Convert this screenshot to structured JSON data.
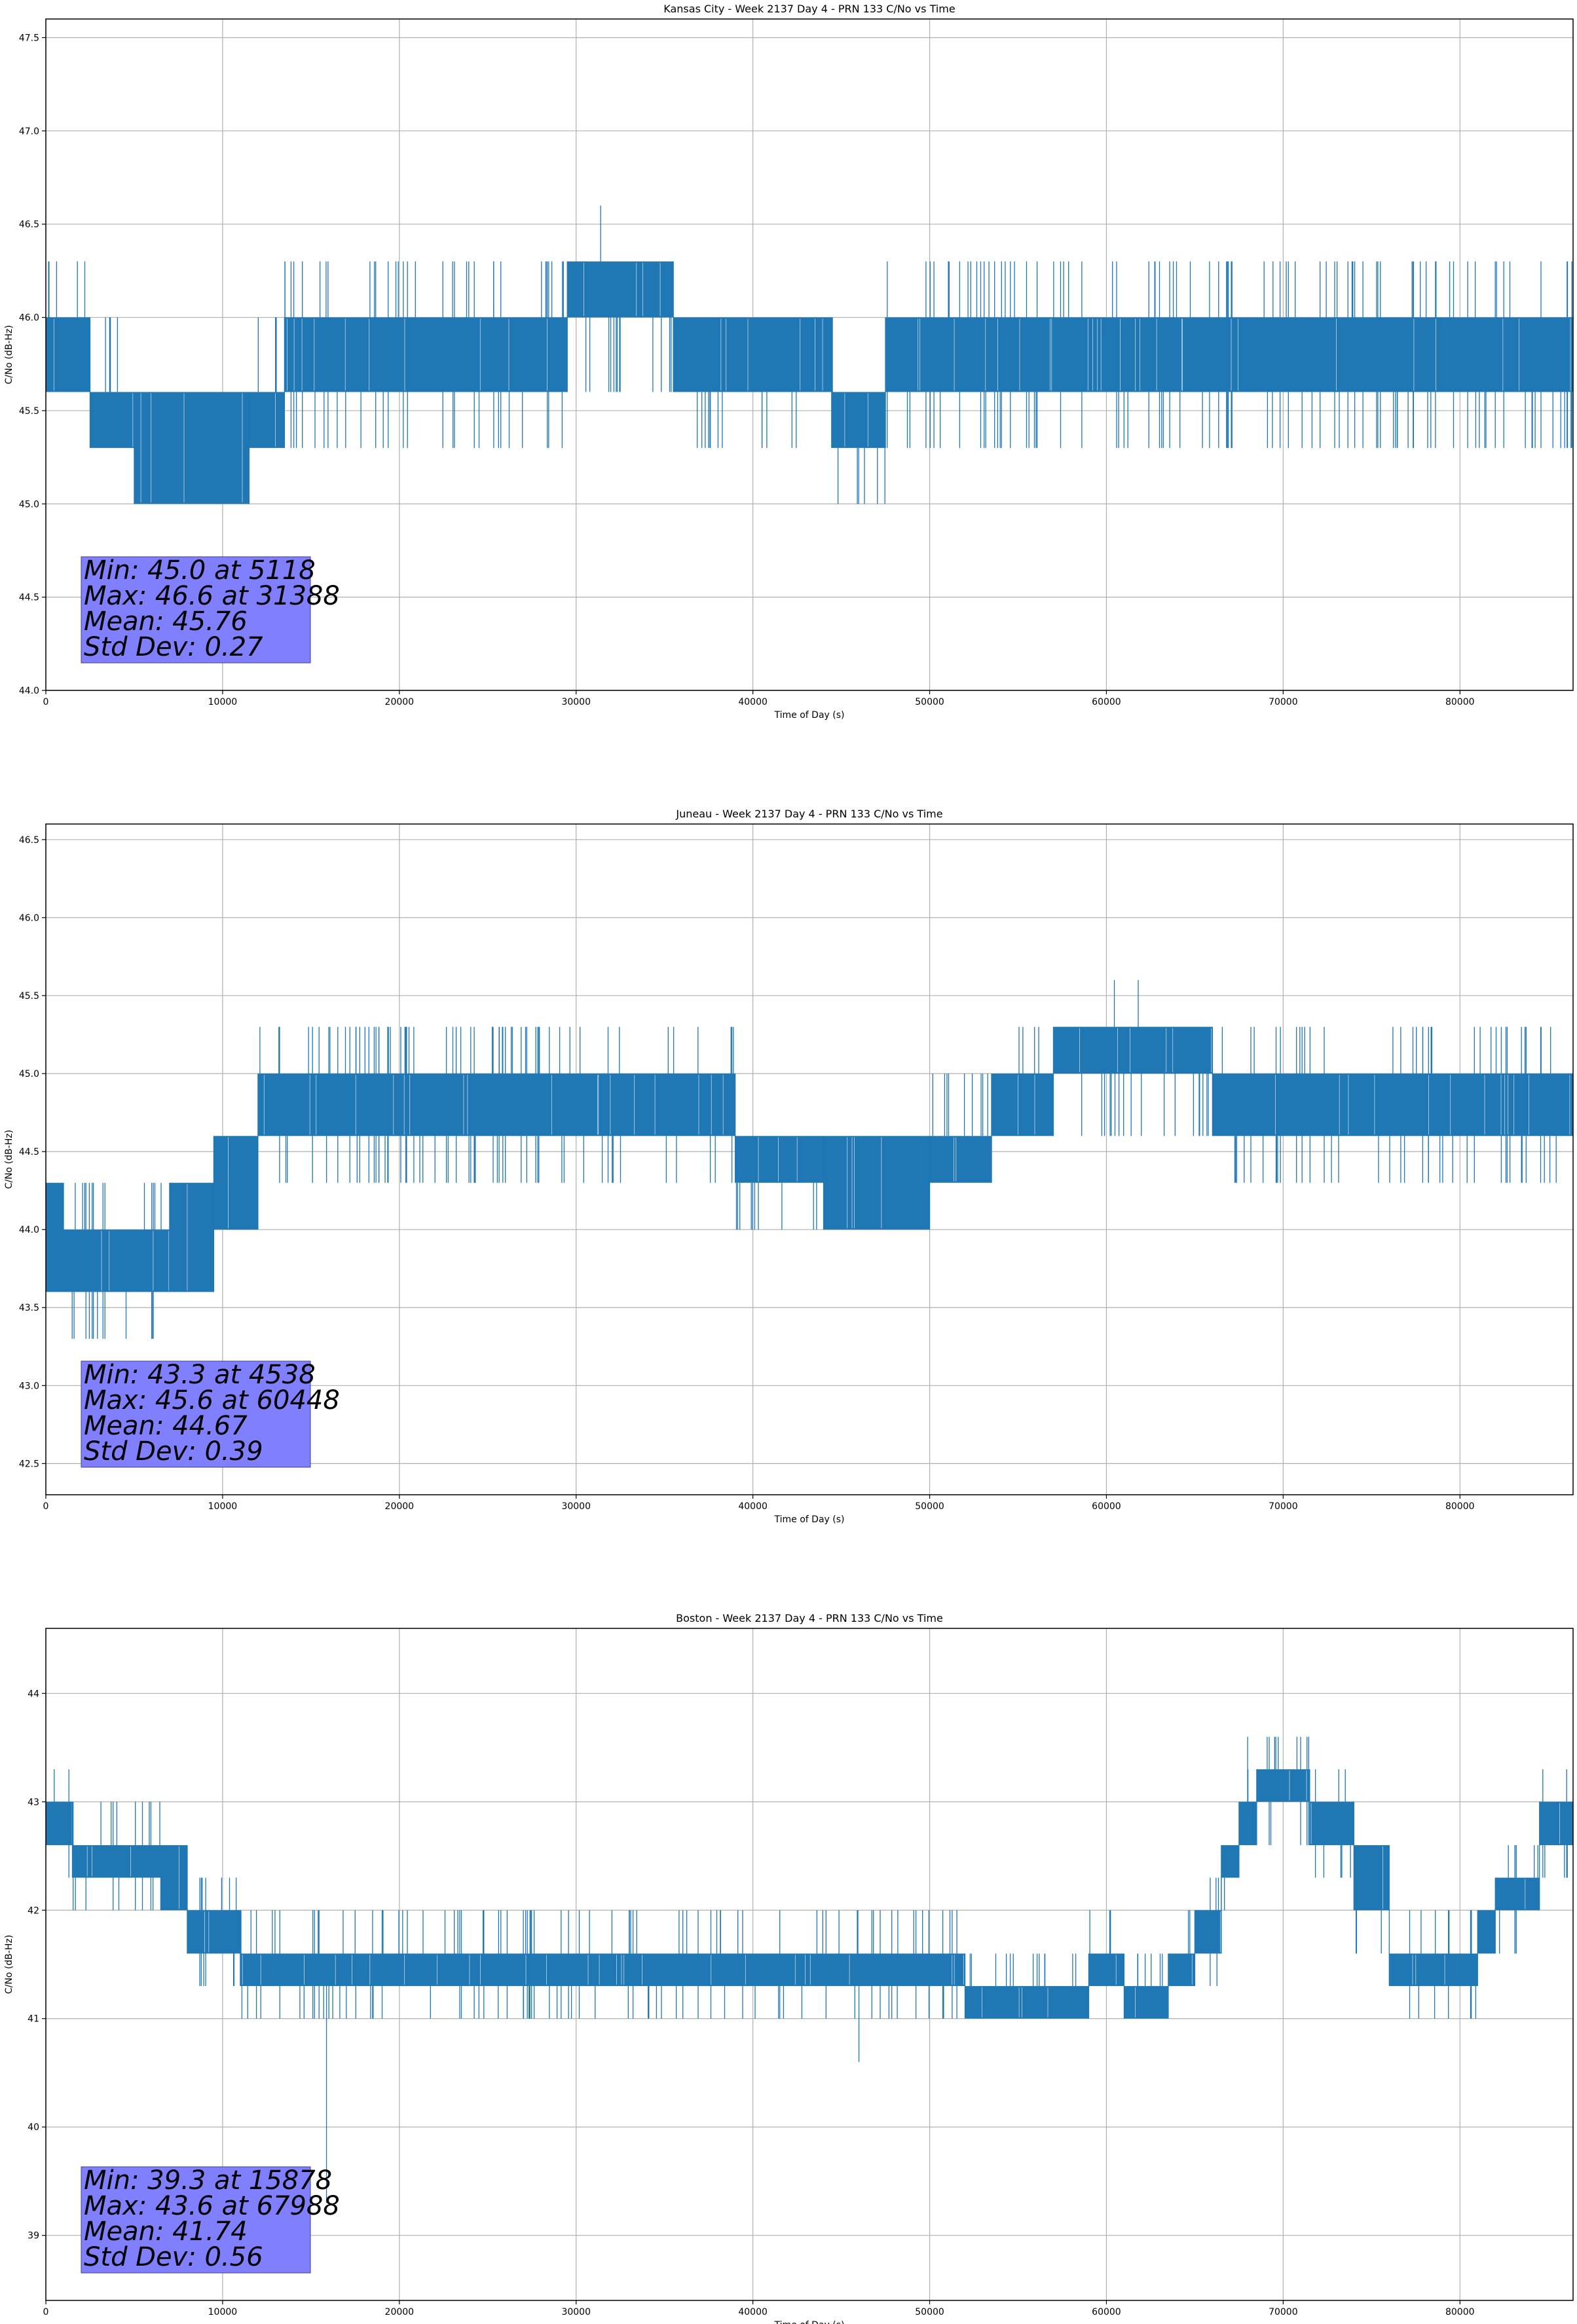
{
  "chart_data": [
    {
      "type": "line",
      "title": "Kansas City - Week 2137 Day 4 - PRN 133 C/No vs Time",
      "xlabel": "Time of Day (s)",
      "ylabel": "C/No (dB-Hz)",
      "xlim": [
        0,
        86400
      ],
      "ylim": [
        44.0,
        47.6
      ],
      "xticks": [
        0,
        10000,
        20000,
        30000,
        40000,
        50000,
        60000,
        70000,
        80000
      ],
      "yticks": [
        44.0,
        44.5,
        45.0,
        45.5,
        46.0,
        46.5,
        47.0,
        47.5
      ],
      "ytick_decimals": 1,
      "grid": true,
      "color": "#1f77b4",
      "series": [
        {
          "name": "C/No",
          "segments": [
            {
              "x0": 0,
              "x1": 2500,
              "lo": 45.6,
              "hi": 46.0,
              "spikes_hi": 46.3,
              "spikes_lo": 45.6
            },
            {
              "x0": 2500,
              "x1": 5000,
              "lo": 45.3,
              "hi": 45.6,
              "spikes_hi": 46.0,
              "spikes_lo": 45.3
            },
            {
              "x0": 5000,
              "x1": 11500,
              "lo": 45.0,
              "hi": 45.6,
              "spikes_hi": 45.6,
              "spikes_lo": 45.0
            },
            {
              "x0": 11500,
              "x1": 13500,
              "lo": 45.3,
              "hi": 45.6,
              "spikes_hi": 46.0,
              "spikes_lo": 45.3
            },
            {
              "x0": 13500,
              "x1": 29500,
              "lo": 45.6,
              "hi": 46.0,
              "spikes_hi": 46.3,
              "spikes_lo": 45.3
            },
            {
              "x0": 29500,
              "x1": 35500,
              "lo": 46.0,
              "hi": 46.3,
              "spikes_hi": 46.3,
              "spikes_lo": 45.6
            },
            {
              "x0": 35500,
              "x1": 44500,
              "lo": 45.6,
              "hi": 46.0,
              "spikes_hi": 46.0,
              "spikes_lo": 45.3
            },
            {
              "x0": 44500,
              "x1": 47500,
              "lo": 45.3,
              "hi": 45.6,
              "spikes_hi": 45.6,
              "spikes_lo": 45.0
            },
            {
              "x0": 47500,
              "x1": 86400,
              "lo": 45.6,
              "hi": 46.0,
              "spikes_hi": 46.3,
              "spikes_lo": 45.3
            }
          ],
          "outliers": [
            {
              "x": 5118,
              "y": 45.0
            },
            {
              "x": 31388,
              "y": 46.6
            }
          ]
        }
      ],
      "annotations": {
        "min_line": "Min: 45.0 at 5118",
        "max_line": "Max: 46.6 at 31388",
        "mean_line": "Mean: 45.76",
        "std_line": "Std Dev: 0.27"
      }
    },
    {
      "type": "line",
      "title": "Juneau - Week 2137 Day 4 - PRN 133 C/No vs Time",
      "xlabel": "Time of Day (s)",
      "ylabel": "C/No (dB-Hz)",
      "xlim": [
        0,
        86400
      ],
      "ylim": [
        42.3,
        46.6
      ],
      "xticks": [
        0,
        10000,
        20000,
        30000,
        40000,
        50000,
        60000,
        70000,
        80000
      ],
      "yticks": [
        42.5,
        43.0,
        43.5,
        44.0,
        44.5,
        45.0,
        45.5,
        46.0,
        46.5
      ],
      "ytick_decimals": 1,
      "grid": true,
      "color": "#1f77b4",
      "series": [
        {
          "name": "C/No",
          "segments": [
            {
              "x0": 0,
              "x1": 1000,
              "lo": 43.6,
              "hi": 44.3,
              "spikes_hi": 44.3,
              "spikes_lo": 43.6
            },
            {
              "x0": 1000,
              "x1": 7000,
              "lo": 43.6,
              "hi": 44.0,
              "spikes_hi": 44.3,
              "spikes_lo": 43.3
            },
            {
              "x0": 7000,
              "x1": 9500,
              "lo": 43.6,
              "hi": 44.3,
              "spikes_hi": 44.3,
              "spikes_lo": 43.6
            },
            {
              "x0": 9500,
              "x1": 12000,
              "lo": 44.0,
              "hi": 44.6,
              "spikes_hi": 44.6,
              "spikes_lo": 44.0
            },
            {
              "x0": 12000,
              "x1": 39000,
              "lo": 44.6,
              "hi": 45.0,
              "spikes_hi": 45.3,
              "spikes_lo": 44.3
            },
            {
              "x0": 39000,
              "x1": 44000,
              "lo": 44.3,
              "hi": 44.6,
              "spikes_hi": 44.6,
              "spikes_lo": 44.0
            },
            {
              "x0": 44000,
              "x1": 50000,
              "lo": 44.0,
              "hi": 44.6,
              "spikes_hi": 44.6,
              "spikes_lo": 44.0
            },
            {
              "x0": 50000,
              "x1": 53500,
              "lo": 44.3,
              "hi": 44.6,
              "spikes_hi": 45.0,
              "spikes_lo": 44.3
            },
            {
              "x0": 53500,
              "x1": 57000,
              "lo": 44.6,
              "hi": 45.0,
              "spikes_hi": 45.3,
              "spikes_lo": 44.6
            },
            {
              "x0": 57000,
              "x1": 66000,
              "lo": 45.0,
              "hi": 45.3,
              "spikes_hi": 45.3,
              "spikes_lo": 44.6
            },
            {
              "x0": 66000,
              "x1": 86400,
              "lo": 44.6,
              "hi": 45.0,
              "spikes_hi": 45.3,
              "spikes_lo": 44.3
            }
          ],
          "outliers": [
            {
              "x": 4538,
              "y": 43.3
            },
            {
              "x": 60448,
              "y": 45.6
            },
            {
              "x": 61800,
              "y": 45.6
            }
          ]
        }
      ],
      "annotations": {
        "min_line": "Min: 43.3 at 4538",
        "max_line": "Max: 45.6 at 60448",
        "mean_line": "Mean: 44.67",
        "std_line": "Std Dev: 0.39"
      }
    },
    {
      "type": "line",
      "title": "Boston - Week 2137 Day 4 - PRN 133 C/No vs Time",
      "xlabel": "Time of Day (s)",
      "ylabel": "C/No (dB-Hz)",
      "xlim": [
        0,
        86400
      ],
      "ylim": [
        38.4,
        44.6
      ],
      "xticks": [
        0,
        10000,
        20000,
        30000,
        40000,
        50000,
        60000,
        70000,
        80000
      ],
      "yticks": [
        39,
        40,
        41,
        42,
        43,
        44
      ],
      "ytick_decimals": 0,
      "grid": true,
      "color": "#1f77b4",
      "series": [
        {
          "name": "C/No",
          "segments": [
            {
              "x0": 0,
              "x1": 1500,
              "lo": 42.6,
              "hi": 43.0,
              "spikes_hi": 43.3,
              "spikes_lo": 42.3
            },
            {
              "x0": 1500,
              "x1": 6500,
              "lo": 42.3,
              "hi": 42.6,
              "spikes_hi": 43.0,
              "spikes_lo": 42.0
            },
            {
              "x0": 6500,
              "x1": 8000,
              "lo": 42.0,
              "hi": 42.6,
              "spikes_hi": 42.6,
              "spikes_lo": 42.0
            },
            {
              "x0": 8000,
              "x1": 11000,
              "lo": 41.6,
              "hi": 42.0,
              "spikes_hi": 42.3,
              "spikes_lo": 41.3
            },
            {
              "x0": 11000,
              "x1": 52000,
              "lo": 41.3,
              "hi": 41.6,
              "spikes_hi": 42.0,
              "spikes_lo": 41.0
            },
            {
              "x0": 52000,
              "x1": 59000,
              "lo": 41.0,
              "hi": 41.3,
              "spikes_hi": 41.6,
              "spikes_lo": 41.0
            },
            {
              "x0": 59000,
              "x1": 61000,
              "lo": 41.3,
              "hi": 41.6,
              "spikes_hi": 42.0,
              "spikes_lo": 41.3
            },
            {
              "x0": 61000,
              "x1": 63500,
              "lo": 41.0,
              "hi": 41.3,
              "spikes_hi": 41.6,
              "spikes_lo": 41.0
            },
            {
              "x0": 63500,
              "x1": 65000,
              "lo": 41.3,
              "hi": 41.6,
              "spikes_hi": 42.0,
              "spikes_lo": 41.3
            },
            {
              "x0": 65000,
              "x1": 66500,
              "lo": 41.6,
              "hi": 42.0,
              "spikes_hi": 42.3,
              "spikes_lo": 41.3
            },
            {
              "x0": 66500,
              "x1": 67500,
              "lo": 42.3,
              "hi": 42.6,
              "spikes_hi": 42.6,
              "spikes_lo": 42.0
            },
            {
              "x0": 67500,
              "x1": 68500,
              "lo": 42.6,
              "hi": 43.0,
              "spikes_hi": 43.3,
              "spikes_lo": 42.6
            },
            {
              "x0": 68500,
              "x1": 71500,
              "lo": 43.0,
              "hi": 43.3,
              "spikes_hi": 43.6,
              "spikes_lo": 42.6
            },
            {
              "x0": 71500,
              "x1": 74000,
              "lo": 42.6,
              "hi": 43.0,
              "spikes_hi": 43.3,
              "spikes_lo": 42.3
            },
            {
              "x0": 74000,
              "x1": 76000,
              "lo": 42.0,
              "hi": 42.6,
              "spikes_hi": 42.6,
              "spikes_lo": 41.6
            },
            {
              "x0": 76000,
              "x1": 81000,
              "lo": 41.3,
              "hi": 41.6,
              "spikes_hi": 42.0,
              "spikes_lo": 41.0
            },
            {
              "x0": 81000,
              "x1": 82000,
              "lo": 41.6,
              "hi": 42.0,
              "spikes_hi": 42.3,
              "spikes_lo": 41.6
            },
            {
              "x0": 82000,
              "x1": 84500,
              "lo": 42.0,
              "hi": 42.3,
              "spikes_hi": 42.6,
              "spikes_lo": 41.6
            },
            {
              "x0": 84500,
              "x1": 86400,
              "lo": 42.6,
              "hi": 43.0,
              "spikes_hi": 43.3,
              "spikes_lo": 42.3
            }
          ],
          "outliers": [
            {
              "x": 15878,
              "y": 39.3
            },
            {
              "x": 46000,
              "y": 40.6
            },
            {
              "x": 67988,
              "y": 43.6
            }
          ]
        }
      ],
      "annotations": {
        "min_line": "Min: 39.3 at 15878",
        "max_line": "Max: 43.6 at 67988",
        "mean_line": "Mean: 41.74",
        "std_line": "Std Dev: 0.56"
      }
    }
  ]
}
